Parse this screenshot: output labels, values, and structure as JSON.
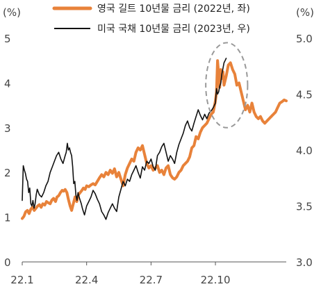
{
  "chart_data": {
    "type": "line",
    "left_unit": "(%)",
    "right_unit": "(%)",
    "x_ticks": [
      "22.1",
      "22.4",
      "22.7",
      "22.10"
    ],
    "x_tick_index": [
      0,
      3,
      6,
      9
    ],
    "xlim": [
      0,
      12.3
    ],
    "left_axis": {
      "ylim": [
        0,
        5
      ],
      "ticks": [
        "0",
        "1",
        "2",
        "3",
        "4",
        "5"
      ]
    },
    "right_axis": {
      "ylim": [
        3.0,
        5.0
      ],
      "ticks": [
        "3.0",
        "3.5",
        "4.0",
        "4.5",
        "5.0"
      ]
    },
    "grid": false,
    "legend_position": "top",
    "series": [
      {
        "name": "영국 길트 10년물 금리 (2022년, 좌)",
        "axis": "left",
        "color": "#E8823A",
        "x": [
          0.0,
          0.08,
          0.16,
          0.24,
          0.32,
          0.4,
          0.48,
          0.56,
          0.64,
          0.72,
          0.8,
          0.88,
          0.96,
          1.05,
          1.13,
          1.22,
          1.3,
          1.38,
          1.46,
          1.55,
          1.62,
          1.7,
          1.78,
          1.86,
          1.93,
          2.0,
          2.08,
          2.15,
          2.23,
          2.3,
          2.38,
          2.46,
          2.54,
          2.62,
          2.7,
          2.78,
          2.85,
          2.93,
          3.0,
          3.1,
          3.2,
          3.3,
          3.4,
          3.5,
          3.6,
          3.7,
          3.8,
          3.9,
          4.0,
          4.1,
          4.2,
          4.3,
          4.4,
          4.5,
          4.6,
          4.7,
          4.8,
          4.9,
          5.0,
          5.1,
          5.2,
          5.3,
          5.4,
          5.5,
          5.6,
          5.7,
          5.8,
          5.9,
          6.0,
          6.1,
          6.2,
          6.3,
          6.4,
          6.5,
          6.6,
          6.7,
          6.8,
          6.9,
          7.0,
          7.1,
          7.2,
          7.3,
          7.4,
          7.5,
          7.6,
          7.7,
          7.8,
          7.9,
          8.0,
          8.1,
          8.2,
          8.3,
          8.4,
          8.5,
          8.6,
          8.7,
          8.8,
          8.9,
          9.0,
          9.05,
          9.1,
          9.15,
          9.2,
          9.25,
          9.3,
          9.35,
          9.4,
          9.5,
          9.6,
          9.7,
          9.8,
          9.9,
          10.0,
          10.1,
          10.2,
          10.3,
          10.4,
          10.5,
          10.6,
          10.7,
          10.8,
          10.9,
          11.0,
          11.1,
          11.2,
          11.3,
          11.4,
          11.5,
          11.6,
          11.7,
          11.8,
          11.9,
          12.0,
          12.1,
          12.2,
          12.3
        ],
        "values": [
          0.97,
          1.02,
          1.12,
          1.15,
          1.08,
          1.18,
          1.22,
          1.15,
          1.2,
          1.25,
          1.28,
          1.22,
          1.3,
          1.27,
          1.35,
          1.32,
          1.3,
          1.38,
          1.42,
          1.35,
          1.45,
          1.48,
          1.55,
          1.6,
          1.58,
          1.62,
          1.55,
          1.4,
          1.25,
          1.15,
          1.3,
          1.45,
          1.35,
          1.5,
          1.55,
          1.6,
          1.65,
          1.62,
          1.7,
          1.68,
          1.72,
          1.75,
          1.72,
          1.8,
          1.88,
          1.95,
          1.9,
          2.0,
          1.95,
          2.05,
          1.98,
          2.08,
          1.9,
          2.0,
          1.85,
          1.7,
          1.95,
          2.1,
          2.2,
          2.3,
          2.25,
          2.45,
          2.55,
          2.5,
          2.6,
          2.4,
          2.2,
          2.1,
          2.15,
          2.05,
          2.1,
          2.15,
          2.0,
          2.05,
          1.95,
          2.1,
          2.15,
          1.95,
          1.88,
          1.85,
          1.9,
          2.0,
          2.05,
          2.15,
          2.2,
          2.25,
          2.35,
          2.55,
          2.6,
          2.8,
          2.75,
          2.9,
          3.0,
          3.05,
          3.1,
          3.2,
          3.3,
          3.35,
          3.6,
          3.8,
          4.5,
          4.2,
          3.9,
          4.3,
          4.1,
          4.25,
          3.95,
          4.15,
          4.4,
          4.45,
          4.3,
          4.2,
          3.95,
          4.0,
          3.8,
          3.6,
          3.4,
          3.5,
          3.35,
          3.55,
          3.35,
          3.25,
          3.2,
          3.25,
          3.15,
          3.1,
          3.15,
          3.2,
          3.25,
          3.3,
          3.35,
          3.45,
          3.55,
          3.58,
          3.62,
          3.6
        ]
      },
      {
        "name": "미국 국채 10년물 금리 (2023년, 우)",
        "axis": "right",
        "color": "#111111",
        "x": [
          0.0,
          0.05,
          0.1,
          0.15,
          0.2,
          0.25,
          0.3,
          0.35,
          0.4,
          0.45,
          0.5,
          0.55,
          0.6,
          0.65,
          0.7,
          0.8,
          0.9,
          1.0,
          1.1,
          1.2,
          1.3,
          1.4,
          1.5,
          1.6,
          1.7,
          1.8,
          1.9,
          2.0,
          2.05,
          2.1,
          2.15,
          2.2,
          2.25,
          2.3,
          2.35,
          2.4,
          2.45,
          2.5,
          2.55,
          2.6,
          2.65,
          2.7,
          2.75,
          2.8,
          2.85,
          2.9,
          3.0,
          3.1,
          3.2,
          3.3,
          3.4,
          3.5,
          3.6,
          3.7,
          3.8,
          3.9,
          4.0,
          4.1,
          4.2,
          4.3,
          4.4,
          4.5,
          4.6,
          4.7,
          4.8,
          4.9,
          5.0,
          5.1,
          5.2,
          5.3,
          5.4,
          5.5,
          5.6,
          5.7,
          5.8,
          5.9,
          6.0,
          6.1,
          6.2,
          6.3,
          6.4,
          6.5,
          6.6,
          6.7,
          6.8,
          6.9,
          7.0,
          7.1,
          7.2,
          7.3,
          7.4,
          7.5,
          7.6,
          7.7,
          7.8,
          7.9,
          8.0,
          8.1,
          8.2,
          8.3,
          8.4,
          8.5,
          8.6,
          8.7,
          8.8,
          8.9,
          9.0,
          9.05,
          9.1,
          9.15,
          9.2,
          9.25,
          9.3,
          9.35,
          9.4,
          9.45,
          9.5
        ],
        "values": [
          3.55,
          3.86,
          3.82,
          3.79,
          3.74,
          3.72,
          3.62,
          3.66,
          3.52,
          3.5,
          3.55,
          3.48,
          3.52,
          3.6,
          3.65,
          3.6,
          3.58,
          3.62,
          3.68,
          3.72,
          3.8,
          3.85,
          3.9,
          3.95,
          3.98,
          3.92,
          3.88,
          3.95,
          3.98,
          4.06,
          4.0,
          4.02,
          3.98,
          3.95,
          3.85,
          3.7,
          3.72,
          3.6,
          3.55,
          3.62,
          3.58,
          3.55,
          3.52,
          3.48,
          3.45,
          3.42,
          3.5,
          3.54,
          3.58,
          3.64,
          3.61,
          3.56,
          3.52,
          3.45,
          3.42,
          3.38,
          3.44,
          3.48,
          3.52,
          3.48,
          3.45,
          3.58,
          3.65,
          3.72,
          3.68,
          3.74,
          3.72,
          3.78,
          3.82,
          3.86,
          3.8,
          3.75,
          3.85,
          3.82,
          3.9,
          3.88,
          3.92,
          3.85,
          3.82,
          3.95,
          3.98,
          4.03,
          4.06,
          3.98,
          3.9,
          3.95,
          3.92,
          3.88,
          3.98,
          4.05,
          4.1,
          4.15,
          4.22,
          4.26,
          4.2,
          4.17,
          4.24,
          4.3,
          4.36,
          4.31,
          4.27,
          4.32,
          4.28,
          4.33,
          4.35,
          4.38,
          4.42,
          4.55,
          4.5,
          4.52,
          4.57,
          4.6,
          4.68,
          4.73,
          4.78,
          4.8,
          4.82
        ]
      }
    ],
    "highlight": {
      "shape": "ellipse",
      "style": "dashed",
      "color": "#999999",
      "x_range": [
        8.55,
        10.5
      ],
      "left_y_range": [
        3.0,
        4.9
      ]
    }
  }
}
